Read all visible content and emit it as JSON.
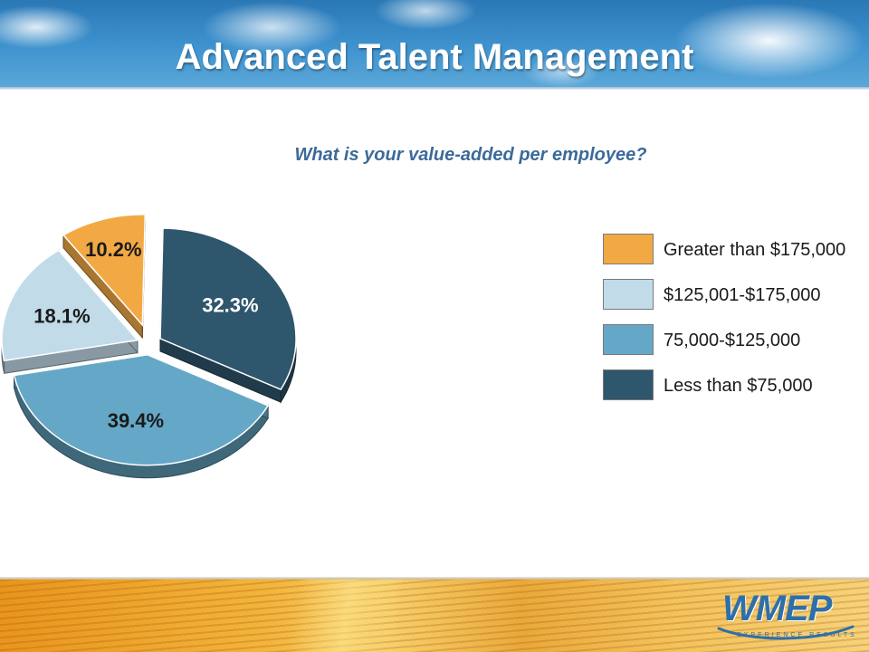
{
  "header": {
    "title": "Advanced Talent Management"
  },
  "chart_data": {
    "type": "pie",
    "title": "What is your value-added per employee?",
    "slices": [
      {
        "label": "Greater than $175,000",
        "value": 10.2,
        "value_label": "10.2%",
        "color": "#f2a944",
        "exploded": true
      },
      {
        "label": "Less than $75,000",
        "value": 32.3,
        "value_label": "32.3%",
        "color": "#2e566c",
        "exploded": false
      },
      {
        "label": "75,000-$125,000",
        "value": 39.4,
        "value_label": "39.4%",
        "color": "#65a7c7",
        "exploded": false
      },
      {
        "label": "$125,001-$175,000",
        "value": 18.1,
        "value_label": "18.1%",
        "color": "#c2dbe9",
        "exploded": false
      }
    ],
    "legend": {
      "placement": "right",
      "entries": [
        {
          "label": "Greater than $175,000",
          "color": "#f2a944"
        },
        {
          "label": "$125,001-$175,000",
          "color": "#c2dbe9"
        },
        {
          "label": "75,000-$125,000",
          "color": "#65a7c7"
        },
        {
          "label": "Less than $75,000",
          "color": "#2e566c"
        }
      ]
    }
  },
  "logo": {
    "wordmark": "WMEP",
    "tagline": "EXPERIENCE RESULTS"
  }
}
